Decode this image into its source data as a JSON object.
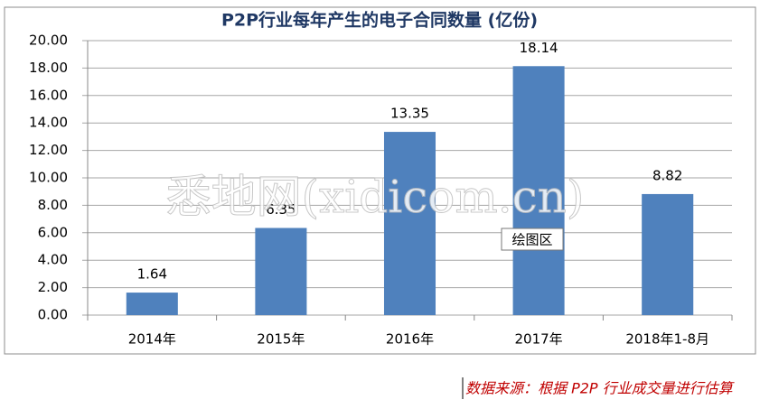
{
  "chart_data": {
    "type": "bar",
    "title": "P2P行业每年产生的电子合同数量 (亿份)",
    "categories": [
      "2014年",
      "2015年",
      "2016年",
      "2017年",
      "2018年1-8月"
    ],
    "values": [
      1.64,
      6.35,
      13.35,
      18.14,
      8.82
    ],
    "color": "#4f81bd",
    "ylim": [
      0,
      20
    ],
    "yticks": [
      {
        "value": 0,
        "label": "0.00"
      },
      {
        "value": 2,
        "label": "2.00"
      },
      {
        "value": 4,
        "label": "4.00"
      },
      {
        "value": 6,
        "label": "6.00"
      },
      {
        "value": 8,
        "label": "8.00"
      },
      {
        "value": 10,
        "label": "10.00"
      },
      {
        "value": 12,
        "label": "12.00"
      },
      {
        "value": 14,
        "label": "14.00"
      },
      {
        "value": 16,
        "label": "16.00"
      },
      {
        "value": 18,
        "label": "18.00"
      },
      {
        "value": 20,
        "label": "20.00"
      }
    ],
    "grid": true,
    "watermark": "悉地网(xidicom.cn)",
    "tooltip": "绘图区",
    "source_note": "数据来源：根据 P2P 行业成交量进行估算"
  }
}
